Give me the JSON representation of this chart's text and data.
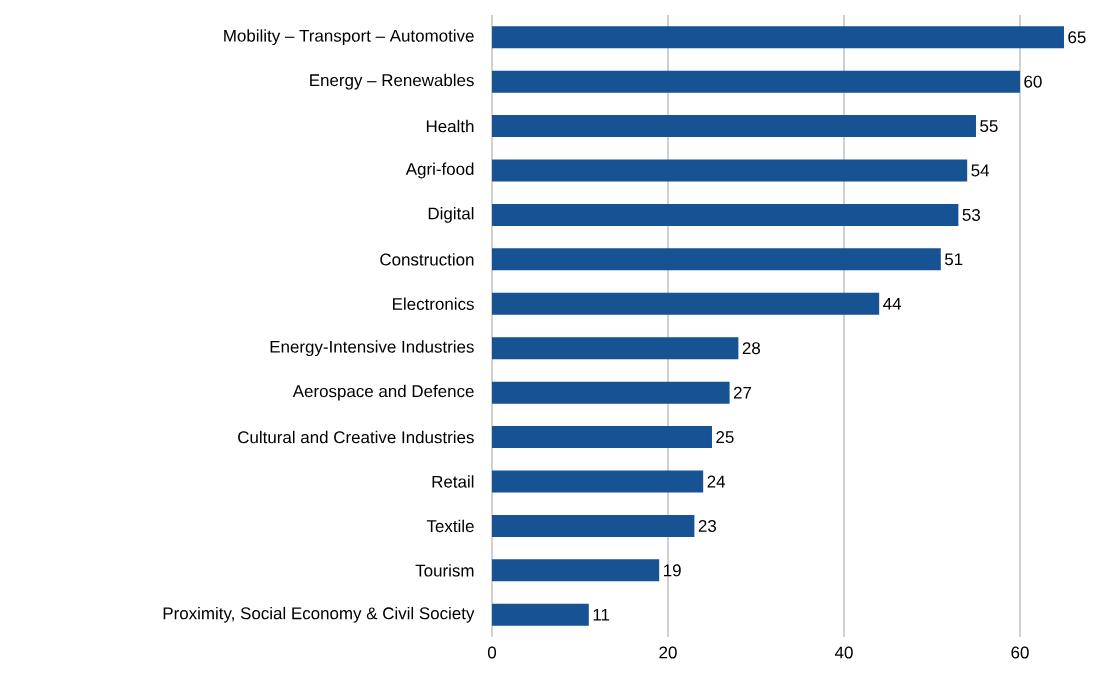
{
  "chart_data": {
    "type": "bar",
    "orientation": "horizontal",
    "categories": [
      "Mobility – Transport – Automotive",
      "Energy – Renewables",
      "Health",
      "Agri-food",
      "Digital",
      "Construction",
      "Electronics",
      "Energy-Intensive Industries",
      "Aerospace and Defence",
      "Cultural and Creative Industries",
      "Retail",
      "Textile",
      "Tourism",
      "Proximity, Social Economy & Civil Society"
    ],
    "values": [
      65,
      60,
      55,
      54,
      53,
      51,
      44,
      28,
      27,
      25,
      24,
      23,
      19,
      11
    ],
    "color": "#175292",
    "data_labels": true,
    "grid": "x",
    "xlim": [
      0,
      65
    ],
    "xticks": [
      0,
      20,
      40,
      60
    ]
  }
}
